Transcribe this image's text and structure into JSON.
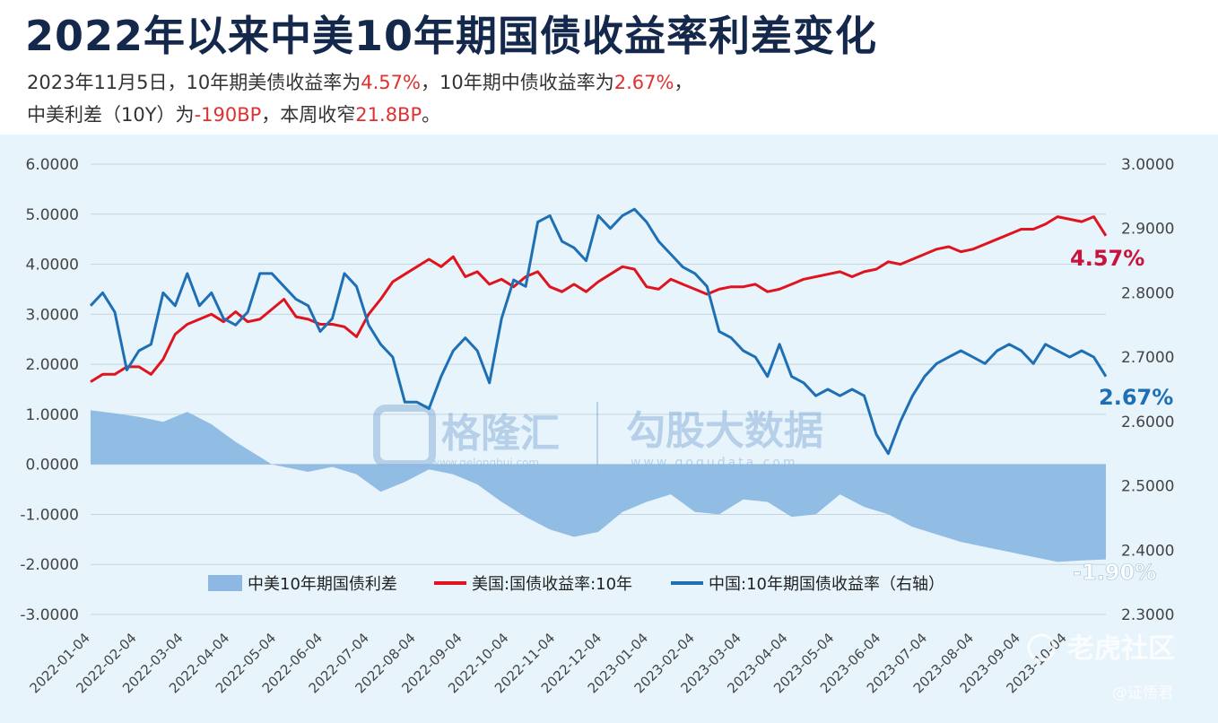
{
  "title": "2022年以来中美10年期国债收益率利差变化",
  "subtitle": {
    "line1": [
      {
        "text": "2023年11月5日，10年期美债收益率为",
        "hl": false
      },
      {
        "text": "4.57%",
        "hl": true
      },
      {
        "text": "，10年期中债收益率为",
        "hl": false
      },
      {
        "text": "2.67%",
        "hl": true
      },
      {
        "text": "，",
        "hl": false
      }
    ],
    "line2": [
      {
        "text": "中美利差（10Y）为",
        "hl": false
      },
      {
        "text": "-190BP",
        "hl": true
      },
      {
        "text": "，本周收窄",
        "hl": false
      },
      {
        "text": "21.8BP",
        "hl": true
      },
      {
        "text": "。",
        "hl": false
      }
    ]
  },
  "watermarks": {
    "gelonghui": "格隆汇",
    "gelonghui_url": "www.gelonghui.com",
    "gogudata": "勾股大数据",
    "gogudata_url": "www.gogudata.com",
    "tiger": "老虎社区",
    "author": "@证悟君"
  },
  "colors": {
    "us": "#e0141e",
    "cn": "#1f6fb5",
    "spread": "#8cb8e3",
    "us_label": "#c8143c",
    "cn_label": "#1f6fb5",
    "spread_label": "#ffffff"
  },
  "chart_data": {
    "type": "line",
    "x_ticks": [
      "2022-01-04",
      "2022-02-04",
      "2022-03-04",
      "2022-04-04",
      "2022-05-04",
      "2022-06-04",
      "2022-07-04",
      "2022-08-04",
      "2022-09-04",
      "2022-10-04",
      "2022-11-04",
      "2022-12-04",
      "2023-01-04",
      "2023-02-04",
      "2023-03-04",
      "2023-04-04",
      "2023-05-04",
      "2023-06-04",
      "2023-07-04",
      "2023-08-04",
      "2023-09-04",
      "2023-10-04"
    ],
    "y_left": {
      "min": -3,
      "max": 6,
      "ticks": [
        "6.0000",
        "5.0000",
        "4.0000",
        "3.0000",
        "2.0000",
        "1.0000",
        "0.0000",
        "-1.0000",
        "-2.0000",
        "-3.0000"
      ]
    },
    "y_right": {
      "min": 2.3,
      "max": 3.0,
      "ticks": [
        "3.0000",
        "2.9000",
        "2.8000",
        "2.7000",
        "2.6000",
        "2.5000",
        "2.4000",
        "2.3000"
      ]
    },
    "series": [
      {
        "name": "中美10年期国债利差",
        "kind": "area",
        "axis": "left",
        "points": [
          [
            0,
            1.08
          ],
          [
            2,
            1.02
          ],
          [
            4,
            0.95
          ],
          [
            6,
            0.85
          ],
          [
            8,
            1.05
          ],
          [
            10,
            0.8
          ],
          [
            12,
            0.45
          ],
          [
            14,
            0.15
          ],
          [
            15,
            0.0
          ],
          [
            16,
            -0.05
          ],
          [
            18,
            -0.15
          ],
          [
            20,
            -0.05
          ],
          [
            22,
            -0.2
          ],
          [
            24,
            -0.55
          ],
          [
            26,
            -0.35
          ],
          [
            28,
            -0.1
          ],
          [
            30,
            -0.2
          ],
          [
            32,
            -0.4
          ],
          [
            34,
            -0.75
          ],
          [
            36,
            -1.05
          ],
          [
            38,
            -1.3
          ],
          [
            40,
            -1.45
          ],
          [
            42,
            -1.35
          ],
          [
            44,
            -0.95
          ],
          [
            46,
            -0.75
          ],
          [
            48,
            -0.6
          ],
          [
            50,
            -0.95
          ],
          [
            52,
            -1.0
          ],
          [
            54,
            -0.7
          ],
          [
            56,
            -0.75
          ],
          [
            58,
            -1.05
          ],
          [
            60,
            -1.0
          ],
          [
            62,
            -0.6
          ],
          [
            64,
            -0.85
          ],
          [
            66,
            -1.0
          ],
          [
            68,
            -1.25
          ],
          [
            70,
            -1.4
          ],
          [
            72,
            -1.55
          ],
          [
            74,
            -1.65
          ],
          [
            76,
            -1.75
          ],
          [
            78,
            -1.85
          ],
          [
            80,
            -1.95
          ],
          [
            82,
            -1.92
          ],
          [
            84,
            -1.9
          ]
        ]
      },
      {
        "name": "美国:国债收益率:10年",
        "kind": "line",
        "axis": "left",
        "points": [
          [
            0,
            1.65
          ],
          [
            1,
            1.8
          ],
          [
            2,
            1.8
          ],
          [
            3,
            1.95
          ],
          [
            4,
            1.95
          ],
          [
            5,
            1.8
          ],
          [
            6,
            2.1
          ],
          [
            7,
            2.6
          ],
          [
            8,
            2.8
          ],
          [
            10,
            3.0
          ],
          [
            11,
            2.85
          ],
          [
            12,
            3.05
          ],
          [
            13,
            2.85
          ],
          [
            14,
            2.9
          ],
          [
            16,
            3.3
          ],
          [
            17,
            2.95
          ],
          [
            18,
            2.9
          ],
          [
            19,
            2.8
          ],
          [
            20,
            2.8
          ],
          [
            21,
            2.75
          ],
          [
            22,
            2.55
          ],
          [
            23,
            3.0
          ],
          [
            24,
            3.3
          ],
          [
            25,
            3.65
          ],
          [
            26,
            3.8
          ],
          [
            28,
            4.1
          ],
          [
            29,
            3.95
          ],
          [
            30,
            4.15
          ],
          [
            31,
            3.75
          ],
          [
            32,
            3.85
          ],
          [
            33,
            3.6
          ],
          [
            34,
            3.7
          ],
          [
            35,
            3.55
          ],
          [
            36,
            3.75
          ],
          [
            37,
            3.85
          ],
          [
            38,
            3.55
          ],
          [
            39,
            3.45
          ],
          [
            40,
            3.6
          ],
          [
            41,
            3.45
          ],
          [
            42,
            3.65
          ],
          [
            43,
            3.8
          ],
          [
            44,
            3.95
          ],
          [
            45,
            3.9
          ],
          [
            46,
            3.55
          ],
          [
            47,
            3.5
          ],
          [
            48,
            3.7
          ],
          [
            49,
            3.6
          ],
          [
            50,
            3.5
          ],
          [
            51,
            3.4
          ],
          [
            52,
            3.5
          ],
          [
            53,
            3.55
          ],
          [
            54,
            3.55
          ],
          [
            55,
            3.6
          ],
          [
            56,
            3.45
          ],
          [
            57,
            3.5
          ],
          [
            58,
            3.6
          ],
          [
            59,
            3.7
          ],
          [
            60,
            3.75
          ],
          [
            61,
            3.8
          ],
          [
            62,
            3.85
          ],
          [
            63,
            3.75
          ],
          [
            64,
            3.85
          ],
          [
            65,
            3.9
          ],
          [
            66,
            4.05
          ],
          [
            67,
            4.0
          ],
          [
            68,
            4.1
          ],
          [
            69,
            4.2
          ],
          [
            70,
            4.3
          ],
          [
            71,
            4.35
          ],
          [
            72,
            4.25
          ],
          [
            73,
            4.3
          ],
          [
            74,
            4.4
          ],
          [
            75,
            4.5
          ],
          [
            76,
            4.6
          ],
          [
            77,
            4.7
          ],
          [
            78,
            4.7
          ],
          [
            79,
            4.8
          ],
          [
            80,
            4.95
          ],
          [
            81,
            4.9
          ],
          [
            82,
            4.85
          ],
          [
            83,
            4.95
          ],
          [
            84,
            4.57
          ]
        ]
      },
      {
        "name": "中国:10年期国债收益率（右轴）",
        "kind": "line",
        "axis": "right",
        "points": [
          [
            0,
            2.78
          ],
          [
            1,
            2.8
          ],
          [
            2,
            2.77
          ],
          [
            3,
            2.68
          ],
          [
            4,
            2.71
          ],
          [
            5,
            2.72
          ],
          [
            6,
            2.8
          ],
          [
            7,
            2.78
          ],
          [
            8,
            2.83
          ],
          [
            9,
            2.78
          ],
          [
            10,
            2.8
          ],
          [
            11,
            2.76
          ],
          [
            12,
            2.75
          ],
          [
            13,
            2.77
          ],
          [
            14,
            2.83
          ],
          [
            15,
            2.83
          ],
          [
            16,
            2.81
          ],
          [
            17,
            2.79
          ],
          [
            18,
            2.78
          ],
          [
            19,
            2.74
          ],
          [
            20,
            2.76
          ],
          [
            21,
            2.83
          ],
          [
            22,
            2.81
          ],
          [
            23,
            2.75
          ],
          [
            24,
            2.72
          ],
          [
            25,
            2.7
          ],
          [
            26,
            2.63
          ],
          [
            27,
            2.63
          ],
          [
            28,
            2.62
          ],
          [
            29,
            2.67
          ],
          [
            30,
            2.71
          ],
          [
            31,
            2.73
          ],
          [
            32,
            2.71
          ],
          [
            33,
            2.66
          ],
          [
            34,
            2.76
          ],
          [
            35,
            2.82
          ],
          [
            36,
            2.81
          ],
          [
            37,
            2.91
          ],
          [
            38,
            2.92
          ],
          [
            39,
            2.88
          ],
          [
            40,
            2.87
          ],
          [
            41,
            2.85
          ],
          [
            42,
            2.92
          ],
          [
            43,
            2.9
          ],
          [
            44,
            2.92
          ],
          [
            45,
            2.93
          ],
          [
            46,
            2.91
          ],
          [
            47,
            2.88
          ],
          [
            48,
            2.86
          ],
          [
            49,
            2.84
          ],
          [
            50,
            2.83
          ],
          [
            51,
            2.81
          ],
          [
            52,
            2.74
          ],
          [
            53,
            2.73
          ],
          [
            54,
            2.71
          ],
          [
            55,
            2.7
          ],
          [
            56,
            2.67
          ],
          [
            57,
            2.72
          ],
          [
            58,
            2.67
          ],
          [
            59,
            2.66
          ],
          [
            60,
            2.64
          ],
          [
            61,
            2.65
          ],
          [
            62,
            2.64
          ],
          [
            63,
            2.65
          ],
          [
            64,
            2.64
          ],
          [
            65,
            2.58
          ],
          [
            66,
            2.55
          ],
          [
            67,
            2.6
          ],
          [
            68,
            2.64
          ],
          [
            69,
            2.67
          ],
          [
            70,
            2.69
          ],
          [
            71,
            2.7
          ],
          [
            72,
            2.71
          ],
          [
            73,
            2.7
          ],
          [
            74,
            2.69
          ],
          [
            75,
            2.71
          ],
          [
            76,
            2.72
          ],
          [
            77,
            2.71
          ],
          [
            78,
            2.69
          ],
          [
            79,
            2.72
          ],
          [
            80,
            2.71
          ],
          [
            81,
            2.7
          ],
          [
            82,
            2.71
          ],
          [
            83,
            2.7
          ],
          [
            84,
            2.67
          ]
        ]
      }
    ],
    "end_labels": {
      "us": "4.57%",
      "cn": "2.67%",
      "spread": "-1.90%"
    },
    "legend": "bottom-center",
    "grid": true
  }
}
